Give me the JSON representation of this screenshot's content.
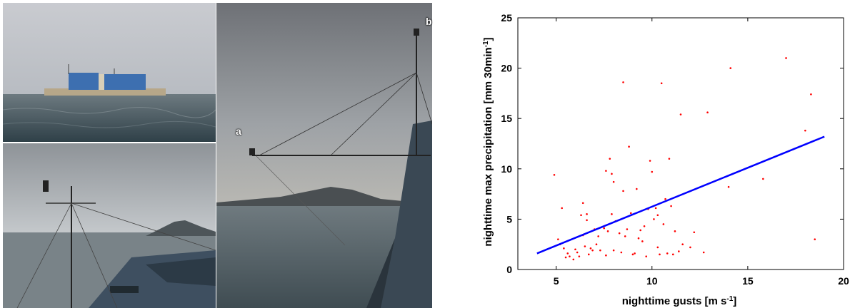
{
  "photos": {
    "panel_a_label": "a",
    "panel_b_label": "b"
  },
  "chart_data": {
    "type": "scatter",
    "xlabel_main": "nighttime gusts [m s",
    "xlabel_sup": "-1",
    "xlabel_end": "]",
    "ylabel_main": "nighttime max precipitation [mm 30min",
    "ylabel_sup": "-1",
    "ylabel_end": "]",
    "xlim": [
      3,
      20
    ],
    "ylim": [
      0,
      25
    ],
    "xticks": [
      5,
      10,
      15,
      20
    ],
    "yticks": [
      0,
      5,
      10,
      15,
      20,
      25
    ],
    "point_color": "#ff0000",
    "fit_color": "#0000ff",
    "fit_line": {
      "x": [
        4,
        19
      ],
      "y": [
        1.6,
        13.2
      ]
    },
    "points": [
      [
        4.9,
        9.4
      ],
      [
        5.3,
        6.1
      ],
      [
        5.1,
        3.0
      ],
      [
        5.2,
        2.5
      ],
      [
        5.4,
        2.1
      ],
      [
        5.6,
        1.6
      ],
      [
        5.7,
        1.3
      ],
      [
        5.5,
        1.2
      ],
      [
        5.9,
        1.0
      ],
      [
        6.0,
        2.0
      ],
      [
        6.1,
        1.7
      ],
      [
        6.2,
        1.3
      ],
      [
        6.3,
        5.4
      ],
      [
        6.4,
        3.4
      ],
      [
        6.4,
        6.6
      ],
      [
        6.6,
        5.5
      ],
      [
        6.6,
        4.9
      ],
      [
        6.7,
        1.5
      ],
      [
        6.5,
        2.3
      ],
      [
        6.8,
        2.1
      ],
      [
        7.0,
        4.0
      ],
      [
        7.2,
        3.3
      ],
      [
        7.3,
        1.9
      ],
      [
        7.5,
        4.1
      ],
      [
        7.6,
        9.8
      ],
      [
        7.6,
        1.4
      ],
      [
        7.7,
        3.8
      ],
      [
        7.8,
        11.0
      ],
      [
        7.9,
        5.5
      ],
      [
        7.9,
        9.5
      ],
      [
        8.0,
        8.7
      ],
      [
        8.0,
        1.9
      ],
      [
        8.1,
        4.8
      ],
      [
        8.3,
        3.6
      ],
      [
        8.4,
        1.7
      ],
      [
        8.5,
        7.8
      ],
      [
        8.5,
        18.6
      ],
      [
        8.6,
        3.3
      ],
      [
        8.7,
        4.0
      ],
      [
        8.9,
        5.6
      ],
      [
        9.0,
        1.5
      ],
      [
        9.1,
        1.6
      ],
      [
        9.2,
        8.0
      ],
      [
        9.3,
        3.1
      ],
      [
        9.5,
        2.8
      ],
      [
        9.6,
        4.3
      ],
      [
        9.7,
        1.3
      ],
      [
        9.8,
        6.0
      ],
      [
        10.0,
        9.7
      ],
      [
        10.1,
        5.0
      ],
      [
        10.2,
        6.1
      ],
      [
        10.3,
        2.2
      ],
      [
        10.4,
        1.5
      ],
      [
        10.5,
        18.5
      ],
      [
        10.6,
        4.5
      ],
      [
        10.7,
        7.0
      ],
      [
        10.8,
        1.6
      ],
      [
        10.9,
        11.0
      ],
      [
        11.0,
        6.3
      ],
      [
        11.1,
        1.5
      ],
      [
        11.2,
        3.8
      ],
      [
        11.4,
        1.8
      ],
      [
        11.5,
        15.4
      ],
      [
        11.6,
        2.5
      ],
      [
        12.0,
        2.2
      ],
      [
        12.7,
        1.7
      ],
      [
        12.9,
        15.6
      ],
      [
        12.2,
        3.7
      ],
      [
        14.1,
        20.0
      ],
      [
        14.0,
        8.2
      ],
      [
        15.8,
        9.0
      ],
      [
        17.0,
        21.0
      ],
      [
        18.0,
        13.8
      ],
      [
        18.3,
        17.4
      ],
      [
        18.5,
        3.0
      ],
      [
        8.8,
        12.2
      ],
      [
        9.9,
        10.8
      ],
      [
        7.1,
        2.5
      ],
      [
        6.9,
        1.9
      ],
      [
        10.3,
        5.4
      ],
      [
        9.4,
        3.9
      ]
    ]
  }
}
